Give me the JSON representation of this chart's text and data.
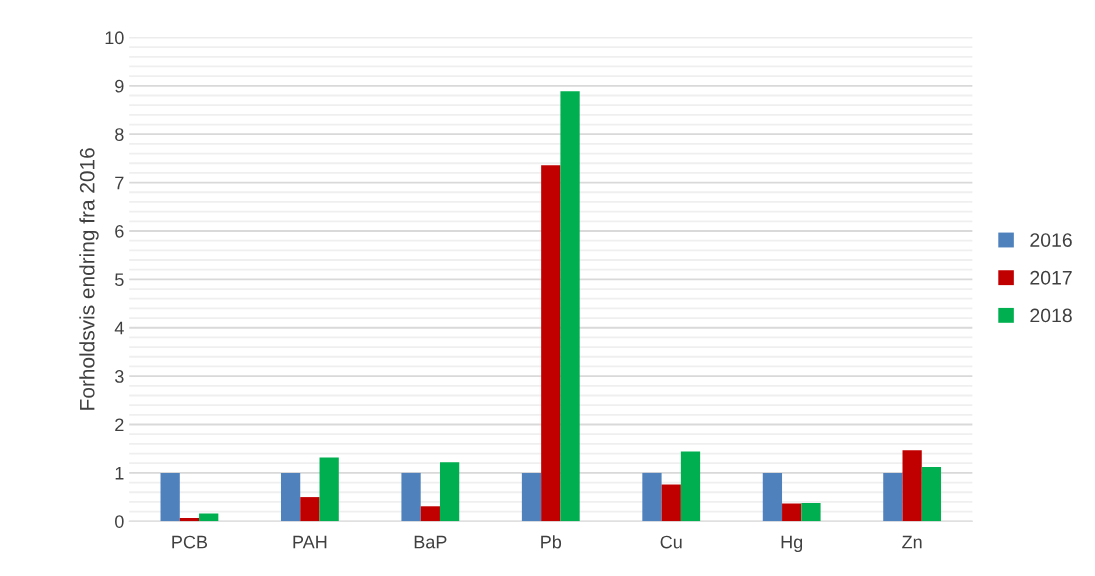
{
  "chart_data": {
    "type": "bar",
    "ylabel": "Forholdsvis endring fra 2016",
    "categories": [
      "PCB",
      "PAH",
      "BaP",
      "Pb",
      "Cu",
      "Hg",
      "Zn"
    ],
    "series": [
      {
        "name": "2016",
        "color": "#4f81bd",
        "values": [
          1,
          1,
          1,
          1,
          1,
          1,
          1
        ]
      },
      {
        "name": "2017",
        "color": "#c00000",
        "values": [
          0.07,
          0.5,
          0.31,
          7.36,
          0.76,
          0.37,
          1.47
        ]
      },
      {
        "name": "2018",
        "color": "#00b050",
        "values": [
          0.16,
          1.32,
          1.22,
          8.89,
          1.44,
          0.38,
          1.12
        ]
      }
    ],
    "ylim": [
      0,
      10
    ],
    "yticks": [
      0,
      1,
      2,
      3,
      4,
      5,
      6,
      7,
      8,
      9,
      10
    ],
    "grid": "y",
    "legend": "right"
  }
}
